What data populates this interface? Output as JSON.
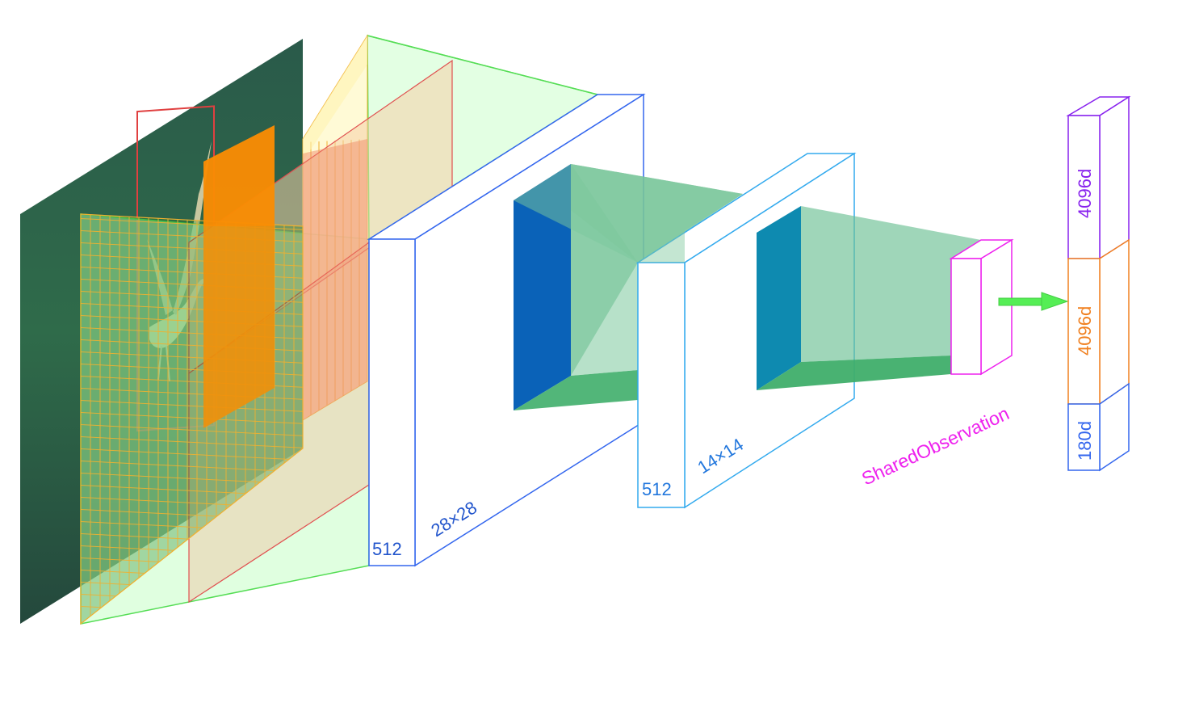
{
  "colors": {
    "green_line": "#44dd44",
    "green_fill": "#ccffcc",
    "blue_line": "#3366ee",
    "blue_face": "#0a62b8",
    "teal_fill": "#5fb888",
    "orange": "#f0900a",
    "magenta": "#ee22ee",
    "purple": "#8822ee",
    "grid_orange": "#f0b030",
    "red": "#e05050"
  },
  "input_image": {
    "subject": "bird on grass",
    "icon": "photo-bird"
  },
  "blocks": {
    "conv_a": {
      "channels": "512",
      "size": "28×28"
    },
    "conv_b": {
      "channels": "512",
      "size": "14×14"
    },
    "shared": {
      "label": "SharedObservation"
    }
  },
  "arrow": {
    "icon": "right-arrow"
  },
  "output_vector": {
    "segments": [
      {
        "label": "4096d",
        "color": "#8822ee"
      },
      {
        "label": "4096d",
        "color": "#f08020"
      },
      {
        "label": "180d",
        "color": "#3366ee"
      }
    ]
  }
}
